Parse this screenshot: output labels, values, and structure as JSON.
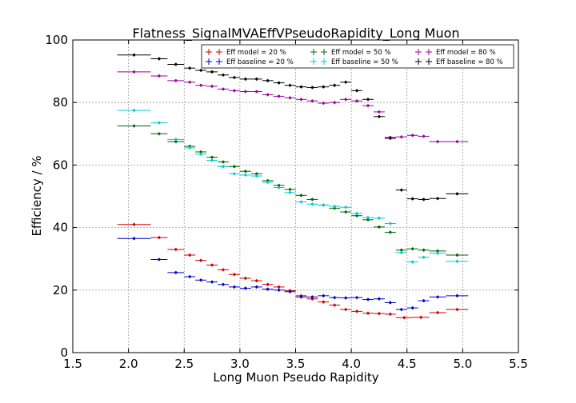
{
  "chart_data": {
    "type": "scatter",
    "title": "Flatness_SignalMVAEffVPseudoRapidity_Long Muon",
    "xlabel": "Long Muon Pseudo Rapidity",
    "ylabel": "Efficiency / %",
    "xlim": [
      1.5,
      5.5
    ],
    "ylim": [
      0,
      100
    ],
    "xticks": [
      "1.5",
      "2.0",
      "2.5",
      "3.0",
      "3.5",
      "4.0",
      "4.5",
      "5.0",
      "5.5"
    ],
    "yticks": [
      "0",
      "20",
      "40",
      "60",
      "80",
      "100"
    ],
    "grid": true,
    "legend_position": "top-right",
    "series": [
      {
        "name": "Eff model = 20 %",
        "color": "#cc0000",
        "points": [
          [
            1.9,
            2.2,
            41.0
          ],
          [
            2.2,
            2.35,
            36.8
          ],
          [
            2.35,
            2.5,
            33.0
          ],
          [
            2.5,
            2.6,
            31.2
          ],
          [
            2.6,
            2.7,
            29.5
          ],
          [
            2.7,
            2.8,
            28.0
          ],
          [
            2.8,
            2.9,
            26.5
          ],
          [
            2.9,
            3.0,
            25.0
          ],
          [
            3.0,
            3.1,
            23.8
          ],
          [
            3.1,
            3.2,
            23.0
          ],
          [
            3.2,
            3.3,
            21.8
          ],
          [
            3.3,
            3.4,
            21.0
          ],
          [
            3.4,
            3.5,
            19.8
          ],
          [
            3.5,
            3.6,
            18.2
          ],
          [
            3.6,
            3.7,
            17.2
          ],
          [
            3.7,
            3.8,
            16.2
          ],
          [
            3.8,
            3.9,
            15.2
          ],
          [
            3.9,
            4.0,
            13.8
          ],
          [
            4.0,
            4.1,
            13.2
          ],
          [
            4.1,
            4.2,
            12.6
          ],
          [
            4.2,
            4.3,
            12.5
          ],
          [
            4.3,
            4.4,
            12.3
          ],
          [
            4.4,
            4.55,
            11.2
          ],
          [
            4.55,
            4.7,
            11.3
          ],
          [
            4.7,
            4.85,
            12.8
          ],
          [
            4.85,
            5.05,
            13.8
          ]
        ]
      },
      {
        "name": "Eff baseline = 20 %",
        "color": "#0000cc",
        "points": [
          [
            1.9,
            2.2,
            36.5
          ],
          [
            2.2,
            2.35,
            29.8
          ],
          [
            2.35,
            2.5,
            25.6
          ],
          [
            2.5,
            2.6,
            24.3
          ],
          [
            2.6,
            2.7,
            23.2
          ],
          [
            2.7,
            2.8,
            22.6
          ],
          [
            2.8,
            2.9,
            21.8
          ],
          [
            2.9,
            3.0,
            21.0
          ],
          [
            3.0,
            3.1,
            20.6
          ],
          [
            3.1,
            3.2,
            21.0
          ],
          [
            3.2,
            3.3,
            20.3
          ],
          [
            3.3,
            3.4,
            20.0
          ],
          [
            3.4,
            3.5,
            19.5
          ],
          [
            3.5,
            3.6,
            17.8
          ],
          [
            3.6,
            3.7,
            17.8
          ],
          [
            3.7,
            3.8,
            18.2
          ],
          [
            3.8,
            3.9,
            17.6
          ],
          [
            3.9,
            4.0,
            17.5
          ],
          [
            4.0,
            4.1,
            17.6
          ],
          [
            4.1,
            4.2,
            17.0
          ],
          [
            4.2,
            4.3,
            17.2
          ],
          [
            4.3,
            4.4,
            16.0
          ],
          [
            4.4,
            4.5,
            13.8
          ],
          [
            4.5,
            4.6,
            14.3
          ],
          [
            4.6,
            4.7,
            16.6
          ],
          [
            4.7,
            4.85,
            17.8
          ],
          [
            4.85,
            5.05,
            18.2
          ]
        ]
      },
      {
        "name": "Eff model = 50 %",
        "color": "#006600",
        "points": [
          [
            1.9,
            2.2,
            72.5
          ],
          [
            2.2,
            2.35,
            70.0
          ],
          [
            2.35,
            2.5,
            67.5
          ],
          [
            2.5,
            2.6,
            66.0
          ],
          [
            2.6,
            2.7,
            64.2
          ],
          [
            2.7,
            2.8,
            62.5
          ],
          [
            2.8,
            2.9,
            61.0
          ],
          [
            2.9,
            3.0,
            59.5
          ],
          [
            3.0,
            3.1,
            58.0
          ],
          [
            3.1,
            3.2,
            57.2
          ],
          [
            3.2,
            3.3,
            55.0
          ],
          [
            3.3,
            3.4,
            53.5
          ],
          [
            3.4,
            3.5,
            52.2
          ],
          [
            3.5,
            3.6,
            50.3
          ],
          [
            3.6,
            3.7,
            49.0
          ],
          [
            3.7,
            3.8,
            47.2
          ],
          [
            3.8,
            3.9,
            46.2
          ],
          [
            3.9,
            4.0,
            45.0
          ],
          [
            4.0,
            4.1,
            43.8
          ],
          [
            4.1,
            4.2,
            42.5
          ],
          [
            4.2,
            4.3,
            40.2
          ],
          [
            4.3,
            4.4,
            38.5
          ],
          [
            4.4,
            4.5,
            32.8
          ],
          [
            4.5,
            4.6,
            33.2
          ],
          [
            4.6,
            4.7,
            32.8
          ],
          [
            4.7,
            4.85,
            32.5
          ],
          [
            4.85,
            5.05,
            31.2
          ]
        ]
      },
      {
        "name": "Eff baseline = 50 %",
        "color": "#00cccc",
        "points": [
          [
            1.9,
            2.2,
            77.5
          ],
          [
            2.2,
            2.35,
            73.5
          ],
          [
            2.35,
            2.5,
            68.2
          ],
          [
            2.5,
            2.6,
            65.5
          ],
          [
            2.6,
            2.7,
            63.5
          ],
          [
            2.7,
            2.8,
            61.5
          ],
          [
            2.8,
            2.9,
            59.5
          ],
          [
            2.9,
            3.0,
            57.2
          ],
          [
            3.0,
            3.1,
            56.8
          ],
          [
            3.1,
            3.2,
            56.5
          ],
          [
            3.2,
            3.3,
            54.5
          ],
          [
            3.3,
            3.4,
            52.8
          ],
          [
            3.4,
            3.5,
            51.2
          ],
          [
            3.5,
            3.6,
            48.2
          ],
          [
            3.6,
            3.7,
            47.5
          ],
          [
            3.7,
            3.8,
            47.2
          ],
          [
            3.8,
            3.9,
            46.8
          ],
          [
            3.9,
            4.0,
            46.5
          ],
          [
            4.0,
            4.1,
            44.5
          ],
          [
            4.1,
            4.2,
            43.2
          ],
          [
            4.2,
            4.3,
            43.0
          ],
          [
            4.3,
            4.4,
            41.3
          ],
          [
            4.4,
            4.5,
            32.0
          ],
          [
            4.5,
            4.6,
            29.0
          ],
          [
            4.6,
            4.7,
            30.5
          ],
          [
            4.7,
            4.85,
            31.8
          ],
          [
            4.85,
            5.05,
            29.2
          ]
        ]
      },
      {
        "name": "Eff model = 80 %",
        "color": "#990099",
        "points": [
          [
            1.9,
            2.2,
            89.8
          ],
          [
            2.2,
            2.35,
            88.5
          ],
          [
            2.35,
            2.5,
            87.0
          ],
          [
            2.5,
            2.6,
            86.5
          ],
          [
            2.6,
            2.7,
            85.5
          ],
          [
            2.7,
            2.8,
            85.2
          ],
          [
            2.8,
            2.9,
            84.3
          ],
          [
            2.9,
            3.0,
            83.8
          ],
          [
            3.0,
            3.1,
            83.5
          ],
          [
            3.1,
            3.2,
            83.5
          ],
          [
            3.2,
            3.3,
            82.5
          ],
          [
            3.3,
            3.4,
            82.0
          ],
          [
            3.4,
            3.5,
            81.5
          ],
          [
            3.5,
            3.6,
            81.0
          ],
          [
            3.6,
            3.7,
            80.5
          ],
          [
            3.7,
            3.8,
            79.8
          ],
          [
            3.8,
            3.9,
            80.0
          ],
          [
            3.9,
            4.0,
            81.0
          ],
          [
            4.0,
            4.1,
            80.5
          ],
          [
            4.1,
            4.2,
            79.0
          ],
          [
            4.2,
            4.3,
            77.0
          ],
          [
            4.3,
            4.4,
            68.5
          ],
          [
            4.4,
            4.5,
            69.0
          ],
          [
            4.5,
            4.6,
            69.5
          ],
          [
            4.6,
            4.7,
            69.2
          ],
          [
            4.7,
            4.85,
            67.5
          ],
          [
            4.85,
            5.05,
            67.5
          ]
        ]
      },
      {
        "name": "Eff baseline = 80 %",
        "color": "#000000",
        "points": [
          [
            1.9,
            2.2,
            95.2
          ],
          [
            2.2,
            2.35,
            94.0
          ],
          [
            2.35,
            2.5,
            92.2
          ],
          [
            2.5,
            2.6,
            91.0
          ],
          [
            2.6,
            2.7,
            90.3
          ],
          [
            2.7,
            2.8,
            89.8
          ],
          [
            2.8,
            2.9,
            88.8
          ],
          [
            2.9,
            3.0,
            88.0
          ],
          [
            3.0,
            3.1,
            87.5
          ],
          [
            3.1,
            3.2,
            87.5
          ],
          [
            3.2,
            3.3,
            87.0
          ],
          [
            3.3,
            3.4,
            86.3
          ],
          [
            3.4,
            3.5,
            85.5
          ],
          [
            3.5,
            3.6,
            85.0
          ],
          [
            3.6,
            3.7,
            84.8
          ],
          [
            3.7,
            3.8,
            85.0
          ],
          [
            3.8,
            3.9,
            85.5
          ],
          [
            3.9,
            4.0,
            86.5
          ],
          [
            4.0,
            4.1,
            83.8
          ],
          [
            4.1,
            4.2,
            81.0
          ],
          [
            4.2,
            4.3,
            75.5
          ],
          [
            4.3,
            4.4,
            68.8
          ],
          [
            4.4,
            4.5,
            52.0
          ],
          [
            4.5,
            4.6,
            49.2
          ],
          [
            4.6,
            4.7,
            49.0
          ],
          [
            4.7,
            4.85,
            49.3
          ],
          [
            4.85,
            5.05,
            50.8
          ]
        ]
      }
    ]
  }
}
